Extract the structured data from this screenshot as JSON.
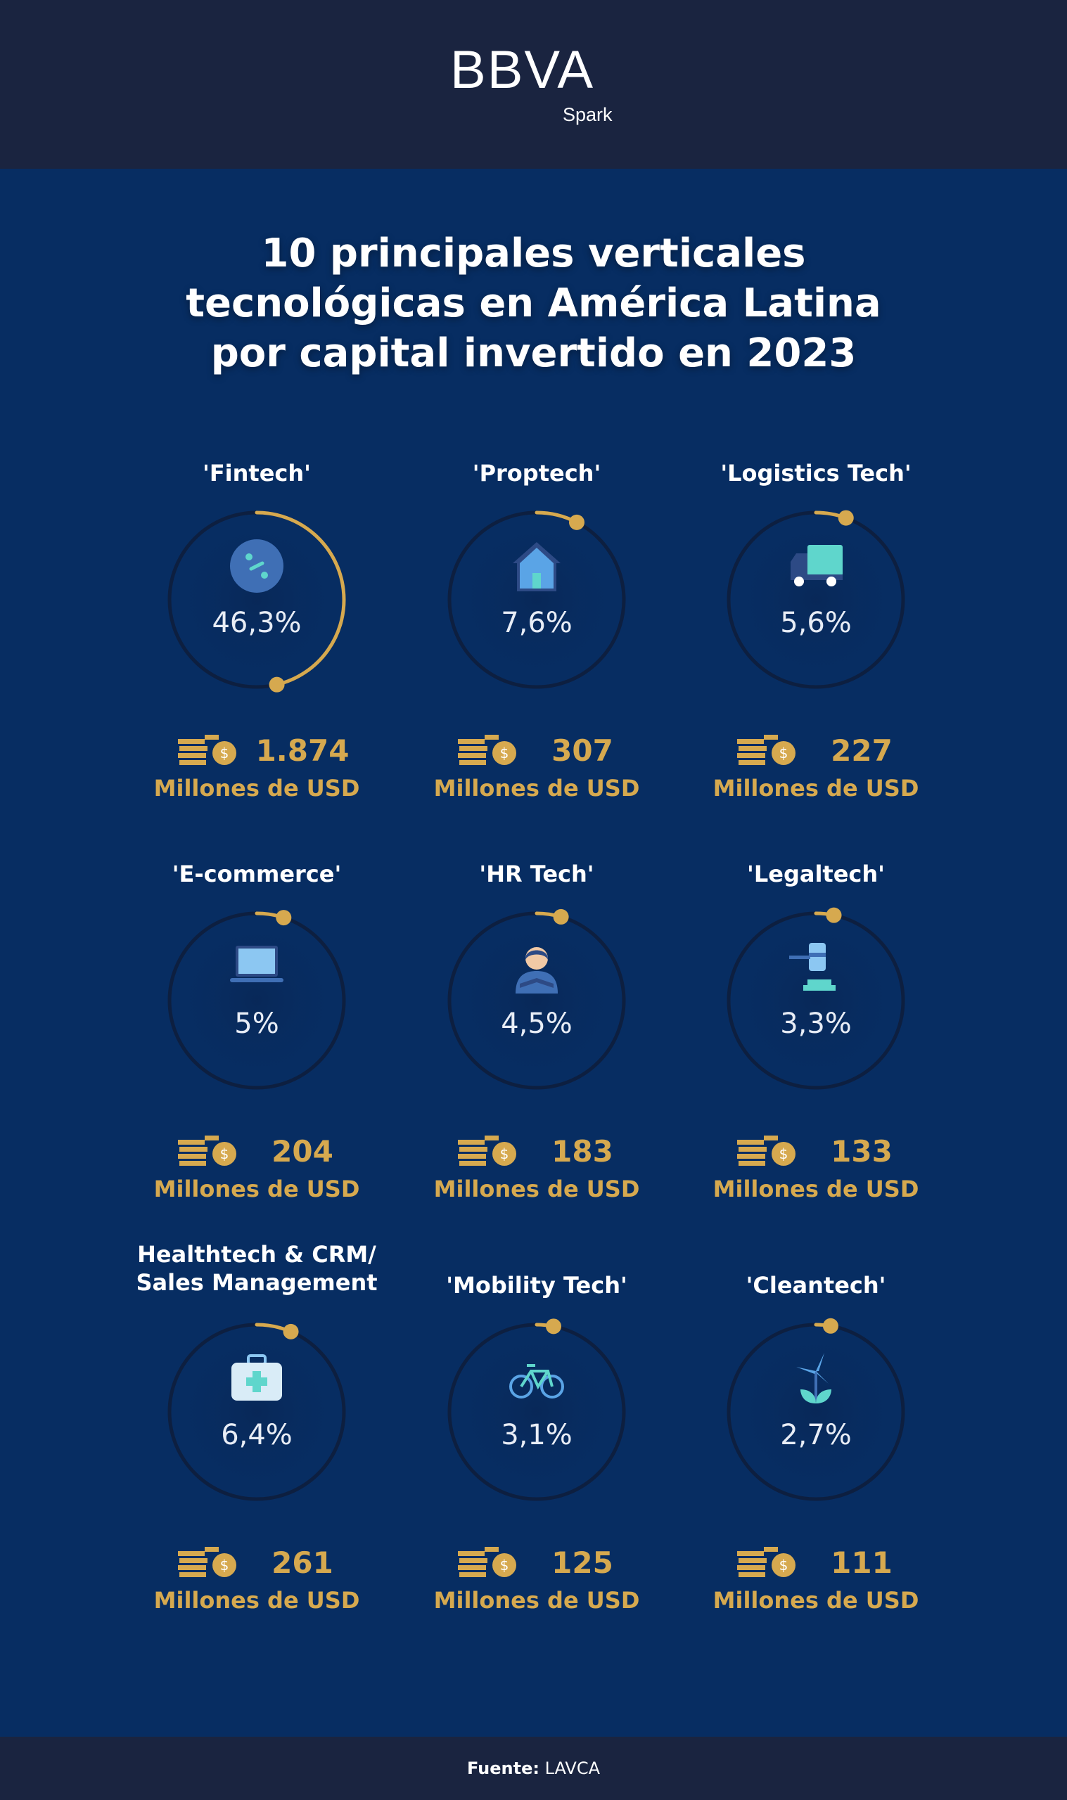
{
  "brand": {
    "logo": "BBVA",
    "sub": "Spark",
    "colors": {
      "header": "#1a2440",
      "background": "#072d62",
      "accent": "#d6a94f"
    }
  },
  "title": {
    "lines": [
      "10 principales verticales",
      "tecnológicas en América Latina",
      "por capital invertido en 2023"
    ]
  },
  "chart_data": {
    "type": "table",
    "unit": "Millones de USD",
    "items": [
      {
        "category": "'Fintech'",
        "percent": 46.3,
        "percent_label": "46,3%",
        "amount": "1.874",
        "icon": "fintech-percent-icon"
      },
      {
        "category": "'Proptech'",
        "percent": 7.6,
        "percent_label": "7,6%",
        "amount": "307",
        "icon": "house-icon"
      },
      {
        "category": "'Logistics Tech'",
        "percent": 5.6,
        "percent_label": "5,6%",
        "amount": "227",
        "icon": "truck-icon"
      },
      {
        "category": "'E-commerce'",
        "percent": 5,
        "percent_label": "5%",
        "amount": "204",
        "icon": "laptop-icon"
      },
      {
        "category": "'HR Tech'",
        "percent": 4.5,
        "percent_label": "4,5%",
        "amount": "183",
        "icon": "person-icon"
      },
      {
        "category": "'Legaltech'",
        "percent": 3.3,
        "percent_label": "3,3%",
        "amount": "133",
        "icon": "gavel-icon"
      },
      {
        "category": "Healthtech & CRM/ Sales Management",
        "category_lines": [
          "Healthtech & CRM/",
          "Sales Management"
        ],
        "percent": 6.4,
        "percent_label": "6,4%",
        "amount": "261",
        "icon": "medical-kit-icon"
      },
      {
        "category": "'Mobility Tech'",
        "percent": 3.1,
        "percent_label": "3,1%",
        "amount": "125",
        "icon": "bicycle-icon"
      },
      {
        "category": "'Cleantech'",
        "percent": 2.7,
        "percent_label": "2,7%",
        "amount": "111",
        "icon": "wind-turbine-icon"
      }
    ]
  },
  "footer": {
    "label": "Fuente:",
    "source": "LAVCA"
  }
}
